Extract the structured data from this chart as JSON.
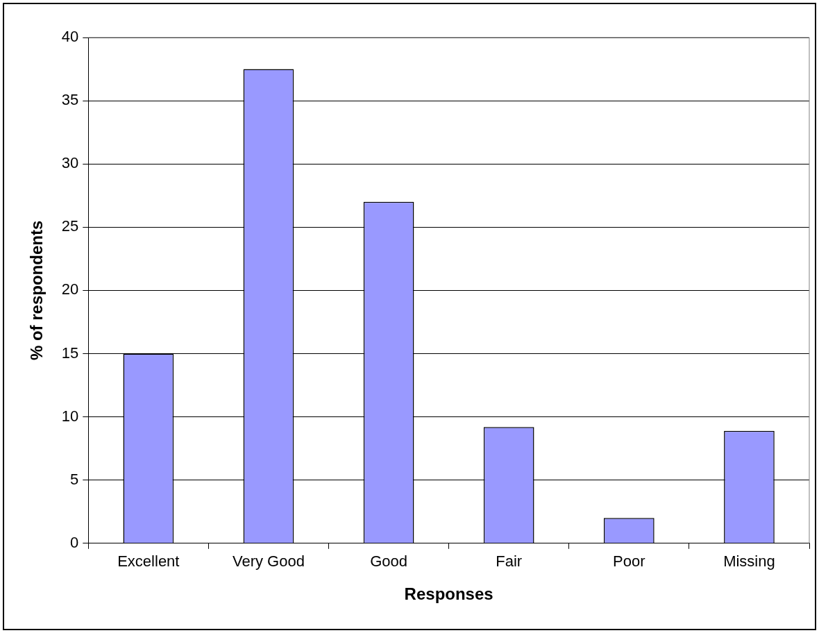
{
  "chart_data": {
    "type": "bar",
    "xlabel": "Responses",
    "ylabel": "% of respondents",
    "categories": [
      "Excellent",
      "Very Good",
      "Good",
      "Fair",
      "Poor",
      "Missing"
    ],
    "values": [
      15,
      37.5,
      27,
      9.2,
      2,
      8.9
    ],
    "color": "#9999ff",
    "ylim": [
      0,
      40
    ],
    "yticks": [
      0,
      5,
      10,
      15,
      20,
      25,
      30,
      35,
      40
    ],
    "grid": "y",
    "legend": false
  }
}
